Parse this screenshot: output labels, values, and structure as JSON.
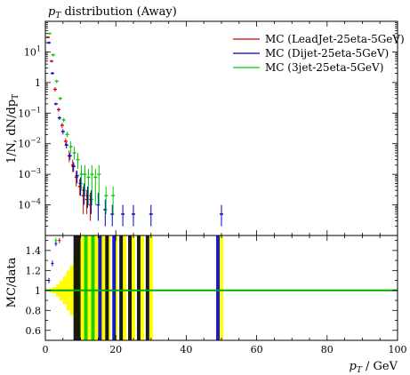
{
  "chart_data": [
    {
      "type": "scatter",
      "panel": "main",
      "title": "p_T distribution (Away)",
      "title_parts": {
        "sym": "p",
        "sub": "T",
        "rest": " distribution (Away)"
      },
      "ylabel": "1/N dN/dp_T",
      "ylabel_parts": {
        "pre": "1/N, dN/dp",
        "sub": "T"
      },
      "yscale": "log",
      "xlim": [
        0,
        100
      ],
      "ylim": [
        1e-05,
        100
      ],
      "yticks": [
        {
          "v": 10,
          "label": "10",
          "exp": "1"
        },
        {
          "v": 1,
          "label": "1",
          "exp": ""
        },
        {
          "v": 0.1,
          "label": "10",
          "exp": "−1"
        },
        {
          "v": 0.01,
          "label": "10",
          "exp": "−2"
        },
        {
          "v": 0.001,
          "label": "10",
          "exp": "−3"
        },
        {
          "v": 0.0001,
          "label": "10",
          "exp": "−4"
        }
      ],
      "legend_position": "top-right",
      "series": [
        {
          "name": "MC (LeadJet-25eta-5GeV)",
          "color": "#cc0000",
          "points": [
            {
              "x": 1,
              "y": 30,
              "lo": 28,
              "hi": 32
            },
            {
              "x": 2,
              "y": 5,
              "lo": 4.5,
              "hi": 5.5
            },
            {
              "x": 3,
              "y": 0.6,
              "lo": 0.5,
              "hi": 0.7
            },
            {
              "x": 4,
              "y": 0.13,
              "lo": 0.11,
              "hi": 0.15
            },
            {
              "x": 5,
              "y": 0.04,
              "lo": 0.032,
              "hi": 0.048
            },
            {
              "x": 6,
              "y": 0.012,
              "lo": 0.009,
              "hi": 0.015
            },
            {
              "x": 7,
              "y": 0.004,
              "lo": 0.0025,
              "hi": 0.006
            },
            {
              "x": 8,
              "y": 0.002,
              "lo": 0.0012,
              "hi": 0.003
            },
            {
              "x": 9,
              "y": 0.0008,
              "lo": 0.0004,
              "hi": 0.0013
            },
            {
              "x": 10,
              "y": 0.0004,
              "lo": 0.0002,
              "hi": 0.0007
            },
            {
              "x": 11,
              "y": 0.0002,
              "lo": 5e-05,
              "hi": 0.0004
            },
            {
              "x": 12,
              "y": 0.00015,
              "lo": 5e-05,
              "hi": 0.0003
            },
            {
              "x": 13,
              "y": 0.0001,
              "lo": 3e-05,
              "hi": 0.00025
            }
          ]
        },
        {
          "name": "MC (Dijet-25eta-5GeV)",
          "color": "#0000cc",
          "points": [
            {
              "x": 1,
              "y": 20,
              "lo": 18,
              "hi": 22
            },
            {
              "x": 2,
              "y": 2,
              "lo": 1.8,
              "hi": 2.2
            },
            {
              "x": 3,
              "y": 0.2,
              "lo": 0.18,
              "hi": 0.22
            },
            {
              "x": 4,
              "y": 0.07,
              "lo": 0.06,
              "hi": 0.08
            },
            {
              "x": 5,
              "y": 0.025,
              "lo": 0.02,
              "hi": 0.03
            },
            {
              "x": 6,
              "y": 0.009,
              "lo": 0.007,
              "hi": 0.011
            },
            {
              "x": 7,
              "y": 0.004,
              "lo": 0.003,
              "hi": 0.005
            },
            {
              "x": 8,
              "y": 0.0018,
              "lo": 0.0012,
              "hi": 0.0025
            },
            {
              "x": 9,
              "y": 0.0009,
              "lo": 0.0005,
              "hi": 0.0013
            },
            {
              "x": 10,
              "y": 0.0005,
              "lo": 0.0002,
              "hi": 0.0008
            },
            {
              "x": 11,
              "y": 0.0003,
              "lo": 0.0001,
              "hi": 0.0005
            },
            {
              "x": 12,
              "y": 0.0002,
              "lo": 8e-05,
              "hi": 0.0004
            },
            {
              "x": 13,
              "y": 0.00015,
              "lo": 5e-05,
              "hi": 0.0003
            },
            {
              "x": 15,
              "y": 0.0001,
              "lo": 3e-05,
              "hi": 0.00025
            },
            {
              "x": 17,
              "y": 7e-05,
              "lo": 2e-05,
              "hi": 0.00015
            },
            {
              "x": 19,
              "y": 5e-05,
              "lo": 2e-05,
              "hi": 0.0001
            },
            {
              "x": 22,
              "y": 5e-05,
              "lo": 2e-05,
              "hi": 0.0001
            },
            {
              "x": 25,
              "y": 5e-05,
              "lo": 2e-05,
              "hi": 0.0001
            },
            {
              "x": 30,
              "y": 5e-05,
              "lo": 2e-05,
              "hi": 0.0001
            },
            {
              "x": 50,
              "y": 5e-05,
              "lo": 2e-05,
              "hi": 0.0001
            }
          ]
        },
        {
          "name": "MC (3jet-25eta-5GeV)",
          "color": "#00cc00",
          "points": [
            {
              "x": 1,
              "y": 40,
              "lo": 37,
              "hi": 43
            },
            {
              "x": 2,
              "y": 8,
              "lo": 7,
              "hi": 9
            },
            {
              "x": 3,
              "y": 1.1,
              "lo": 0.95,
              "hi": 1.25
            },
            {
              "x": 4,
              "y": 0.3,
              "lo": 0.26,
              "hi": 0.34
            },
            {
              "x": 5,
              "y": 0.06,
              "lo": 0.05,
              "hi": 0.07
            },
            {
              "x": 6,
              "y": 0.02,
              "lo": 0.016,
              "hi": 0.025
            },
            {
              "x": 7,
              "y": 0.008,
              "lo": 0.005,
              "hi": 0.012
            },
            {
              "x": 8,
              "y": 0.005,
              "lo": 0.003,
              "hi": 0.008
            },
            {
              "x": 9,
              "y": 0.003,
              "lo": 0.0015,
              "hi": 0.005
            },
            {
              "x": 10,
              "y": 0.001,
              "lo": 0.0003,
              "hi": 0.002
            },
            {
              "x": 11,
              "y": 0.001,
              "lo": 0.0002,
              "hi": 0.002
            },
            {
              "x": 12,
              "y": 0.0008,
              "lo": 0.0001,
              "hi": 0.0015
            },
            {
              "x": 13,
              "y": 0.001,
              "lo": 0.0001,
              "hi": 0.002
            },
            {
              "x": 14,
              "y": 0.0008,
              "lo": 0.0001,
              "hi": 0.0015
            },
            {
              "x": 15,
              "y": 0.001,
              "lo": 0.0001,
              "hi": 0.002
            },
            {
              "x": 17,
              "y": 0.0002,
              "lo": 5e-05,
              "hi": 0.0004
            },
            {
              "x": 19,
              "y": 0.0002,
              "lo": 5e-05,
              "hi": 0.0004
            }
          ]
        }
      ]
    },
    {
      "type": "bar",
      "panel": "ratio",
      "ylabel": "MC/data",
      "xlabel": "p_T / GeV",
      "xlabel_parts": {
        "sym": "p",
        "sub": "T",
        "rest": " / GeV"
      },
      "xlim": [
        0,
        100
      ],
      "ylim": [
        0.5,
        1.55
      ],
      "xticks": [
        0,
        20,
        40,
        60,
        80,
        100
      ],
      "yticks": [
        0.6,
        0.8,
        1,
        1.2,
        1.4
      ],
      "reference_line": 1.0,
      "reference_color": "#00aa00",
      "band_color": "#ffff00",
      "uncertainty_band": [
        {
          "x0": 0,
          "x1": 1,
          "lo": 0.995,
          "hi": 1.005
        },
        {
          "x0": 1,
          "x1": 2,
          "lo": 0.98,
          "hi": 1.02
        },
        {
          "x0": 2,
          "x1": 3,
          "lo": 0.97,
          "hi": 1.03
        },
        {
          "x0": 3,
          "x1": 4,
          "lo": 0.94,
          "hi": 1.06
        },
        {
          "x0": 4,
          "x1": 5,
          "lo": 0.9,
          "hi": 1.1
        },
        {
          "x0": 5,
          "x1": 6,
          "lo": 0.86,
          "hi": 1.14
        },
        {
          "x0": 6,
          "x1": 7,
          "lo": 0.8,
          "hi": 1.2
        },
        {
          "x0": 7,
          "x1": 8,
          "lo": 0.75,
          "hi": 1.25
        },
        {
          "x0": 8,
          "x1": 9,
          "lo": 0.65,
          "hi": 1.35
        },
        {
          "x0": 9,
          "x1": 10,
          "lo": 0.55,
          "hi": 1.45
        },
        {
          "x0": 10,
          "x1": 11,
          "lo": 0.5,
          "hi": 1.55
        },
        {
          "x0": 11,
          "x1": 12,
          "lo": 0.5,
          "hi": 1.55
        },
        {
          "x0": 12,
          "x1": 13,
          "lo": 0.5,
          "hi": 1.55
        },
        {
          "x0": 13,
          "x1": 14,
          "lo": 0.5,
          "hi": 1.55
        },
        {
          "x0": 14,
          "x1": 15,
          "lo": 0.5,
          "hi": 1.55
        },
        {
          "x0": 15,
          "x1": 16,
          "lo": 0.5,
          "hi": 1.55
        },
        {
          "x0": 16,
          "x1": 17,
          "lo": 0.5,
          "hi": 1.55
        },
        {
          "x0": 17.5,
          "x1": 18.5,
          "lo": 0.5,
          "hi": 1.55
        },
        {
          "x0": 19.5,
          "x1": 20.5,
          "lo": 0.5,
          "hi": 1.55
        },
        {
          "x0": 22,
          "x1": 23,
          "lo": 0.5,
          "hi": 1.55
        },
        {
          "x0": 24.5,
          "x1": 25.5,
          "lo": 0.5,
          "hi": 1.55
        },
        {
          "x0": 27,
          "x1": 28,
          "lo": 0.5,
          "hi": 1.55
        },
        {
          "x0": 29.5,
          "x1": 30.5,
          "lo": 0.5,
          "hi": 1.55
        },
        {
          "x0": 49.5,
          "x1": 50.5,
          "lo": 0.5,
          "hi": 1.55
        }
      ],
      "ratio_points": [
        {
          "x": 1,
          "y": 1.1,
          "color": "#0000cc"
        },
        {
          "x": 2,
          "y": 1.27,
          "color": "#0000cc"
        },
        {
          "x": 3,
          "y": 1.47,
          "color": "#0000cc"
        },
        {
          "x": 3,
          "y": 1.5,
          "color": "#00cc00"
        },
        {
          "x": 4,
          "y": 1.5,
          "color": "#cc0000"
        }
      ],
      "ratio_bars": [
        {
          "x0": 8,
          "x1": 10,
          "color": "#000000"
        },
        {
          "x0": 11,
          "x1": 12,
          "color": "#00cc00"
        },
        {
          "x0": 13,
          "x1": 14,
          "color": "#00cc00"
        },
        {
          "x0": 15,
          "x1": 16,
          "color": "#0000cc"
        },
        {
          "x0": 17,
          "x1": 18,
          "color": "#000000"
        },
        {
          "x0": 19,
          "x1": 20,
          "color": "#0000cc"
        },
        {
          "x0": 21,
          "x1": 22,
          "color": "#000000"
        },
        {
          "x0": 23.5,
          "x1": 24.5,
          "color": "#000000"
        },
        {
          "x0": 26,
          "x1": 27,
          "color": "#000000"
        },
        {
          "x0": 28.5,
          "x1": 29.5,
          "color": "#000000"
        },
        {
          "x0": 48.5,
          "x1": 49.5,
          "color": "#0000cc"
        }
      ]
    }
  ]
}
